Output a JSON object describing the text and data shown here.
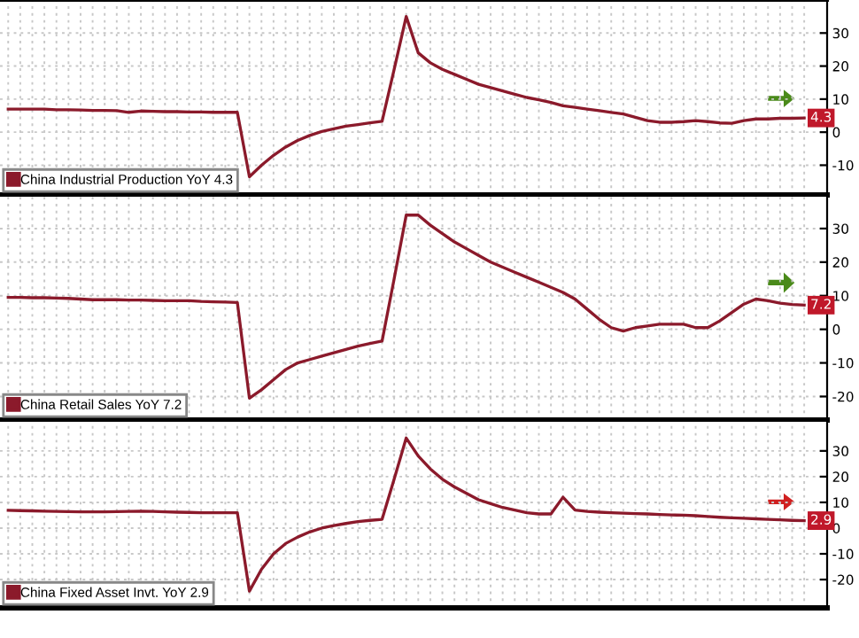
{
  "chart_data": [
    {
      "type": "line",
      "categories": [
        null,
        null,
        null,
        null,
        null,
        null,
        null,
        null,
        null,
        null,
        null,
        null,
        null,
        null,
        null,
        null,
        null,
        null,
        null,
        null,
        null,
        null,
        null,
        null,
        null,
        null,
        null,
        null,
        null,
        null,
        null,
        null,
        null,
        null,
        null,
        null,
        null,
        null,
        null,
        null,
        null,
        null,
        null,
        null,
        null,
        null,
        null,
        null,
        null,
        null,
        null,
        null,
        null,
        null,
        null,
        null,
        null,
        null,
        null,
        null,
        null,
        null,
        null,
        null,
        null,
        null,
        null
      ],
      "series": [
        {
          "name": "China Industrial Production YoY 4.3",
          "color": "#8b1a2b",
          "values": [
            7,
            7,
            7,
            7,
            6.8,
            6.8,
            6.7,
            6.6,
            6.6,
            6.5,
            6,
            6.4,
            6.3,
            6.2,
            6.2,
            6.1,
            6.1,
            6,
            6,
            6,
            -13.5,
            -10,
            -7,
            -4.5,
            -2.5,
            -1,
            0.2,
            1,
            1.8,
            2.3,
            2.8,
            3.3,
            19,
            35,
            24,
            21,
            19,
            17.5,
            16,
            14.5,
            13.5,
            12.5,
            11.5,
            10.5,
            9.8,
            9,
            8,
            7.5,
            7,
            6.5,
            6,
            5.5,
            4.5,
            3.5,
            3,
            3,
            3.2,
            3.5,
            3.2,
            2.8,
            2.7,
            3.5,
            4,
            4,
            4.2,
            4.2,
            4.3
          ],
          "value_labels": [
            null,
            null,
            null,
            null,
            null,
            null,
            null,
            null,
            null,
            null,
            null,
            null,
            null,
            null,
            null,
            null,
            null,
            null,
            null,
            null,
            null,
            null,
            null,
            null,
            null,
            null,
            null,
            null,
            null,
            null,
            null,
            null,
            null,
            null,
            null,
            null,
            null,
            null,
            null,
            null,
            null,
            null,
            null,
            null,
            null,
            null,
            null,
            null,
            null,
            null,
            null,
            null,
            null,
            null,
            null,
            null,
            null,
            null,
            null,
            null,
            null,
            null,
            null,
            null,
            null,
            null,
            "4.3"
          ]
        }
      ],
      "ylim": [
        -19,
        40
      ],
      "yticks": [
        -10,
        0,
        10,
        20,
        30
      ],
      "grid": true,
      "legend": "bottom left",
      "tick_labels": "y"
    },
    {
      "type": "line",
      "categories": [
        null,
        null,
        null,
        null,
        null,
        null,
        null,
        null,
        null,
        null,
        null,
        null,
        null,
        null,
        null,
        null,
        null,
        null,
        null,
        null,
        null,
        null,
        null,
        null,
        null,
        null,
        null,
        null,
        null,
        null,
        null,
        null,
        null,
        null,
        null,
        null,
        null,
        null,
        null,
        null,
        null,
        null,
        null,
        null,
        null,
        null,
        null,
        null,
        null,
        null,
        null,
        null,
        null,
        null,
        null,
        null,
        null,
        null,
        null,
        null,
        null,
        null,
        null,
        null,
        null,
        null,
        null
      ],
      "series": [
        {
          "name": "China Retail Sales YoY 7.2",
          "color": "#8b1a2b",
          "values": [
            9.5,
            9.5,
            9.4,
            9.4,
            9.3,
            9.2,
            9.0,
            8.8,
            8.8,
            8.8,
            8.7,
            8.7,
            8.6,
            8.5,
            8.5,
            8.5,
            8.3,
            8.2,
            8.1,
            8.0,
            -20.5,
            -18,
            -15,
            -12,
            -10,
            -9,
            -8,
            -7,
            -6,
            -5,
            -4.2,
            -3.5,
            15,
            34,
            34,
            31,
            28.5,
            26,
            24,
            22,
            20,
            18.5,
            17,
            15.5,
            14,
            12.5,
            11,
            9,
            6,
            3,
            0.5,
            -0.5,
            0.5,
            1,
            1.5,
            1.5,
            1.5,
            0.5,
            0.5,
            2.5,
            5,
            7.5,
            9,
            8.5,
            7.8,
            7.4,
            7.2
          ],
          "value_labels": [
            null,
            null,
            null,
            null,
            null,
            null,
            null,
            null,
            null,
            null,
            null,
            null,
            null,
            null,
            null,
            null,
            null,
            null,
            null,
            null,
            null,
            null,
            null,
            null,
            null,
            null,
            null,
            null,
            null,
            null,
            null,
            null,
            null,
            null,
            null,
            null,
            null,
            null,
            null,
            null,
            null,
            null,
            null,
            null,
            null,
            null,
            null,
            null,
            null,
            null,
            null,
            null,
            null,
            null,
            null,
            null,
            null,
            null,
            null,
            null,
            null,
            null,
            null,
            null,
            null,
            null,
            "7.2"
          ]
        }
      ],
      "ylim": [
        -27,
        40
      ],
      "yticks": [
        -20,
        -10,
        0,
        10,
        20,
        30
      ],
      "grid": true,
      "legend": "bottom left",
      "tick_labels": "y"
    },
    {
      "type": "line",
      "categories": [
        null,
        null,
        null,
        null,
        null,
        null,
        null,
        null,
        null,
        null,
        null,
        null,
        null,
        null,
        null,
        null,
        null,
        null,
        null,
        null,
        null,
        null,
        null,
        null,
        null,
        null,
        null,
        null,
        null,
        null,
        null,
        null,
        null,
        null,
        null,
        null,
        null,
        null,
        null,
        null,
        null,
        null,
        null,
        null,
        null,
        null,
        null,
        null,
        null,
        null,
        null,
        null,
        null,
        null,
        null,
        null,
        null,
        null,
        null,
        null,
        null,
        null,
        null,
        null,
        null,
        null,
        null
      ],
      "series": [
        {
          "name": "China Fixed Asset Invt. YoY 2.9",
          "color": "#8b1a2b",
          "values": [
            6.9,
            6.8,
            6.7,
            6.6,
            6.5,
            6.4,
            6.3,
            6.3,
            6.3,
            6.4,
            6.5,
            6.6,
            6.5,
            6.3,
            6.2,
            6.1,
            6.0,
            6.0,
            6.0,
            6.0,
            -24.5,
            -16,
            -10,
            -6,
            -3.5,
            -1.5,
            0,
            1,
            1.8,
            2.5,
            3,
            3.4,
            19,
            35,
            28,
            23,
            19,
            16,
            13.5,
            11,
            9.5,
            8,
            7,
            6,
            5.5,
            5.5,
            12,
            7,
            6.5,
            6.2,
            6,
            5.8,
            5.6,
            5.5,
            5.3,
            5.1,
            5,
            4.8,
            4.5,
            4.2,
            4,
            3.8,
            3.6,
            3.4,
            3.2,
            3.0,
            2.9
          ],
          "value_labels": [
            null,
            null,
            null,
            null,
            null,
            null,
            null,
            null,
            null,
            null,
            null,
            null,
            null,
            null,
            null,
            null,
            null,
            null,
            null,
            null,
            null,
            null,
            null,
            null,
            null,
            null,
            null,
            null,
            null,
            null,
            null,
            null,
            null,
            null,
            null,
            null,
            null,
            null,
            null,
            null,
            null,
            null,
            null,
            null,
            null,
            null,
            null,
            null,
            null,
            null,
            null,
            null,
            null,
            null,
            null,
            null,
            null,
            null,
            null,
            null,
            null,
            null,
            null,
            null,
            null,
            null,
            "2.9"
          ]
        }
      ],
      "ylim": [
        -31,
        42
      ],
      "yticks": [
        -20,
        -10,
        0,
        10,
        20,
        30
      ],
      "grid": true,
      "legend": "bottom left",
      "tick_labels": "y"
    }
  ]
}
